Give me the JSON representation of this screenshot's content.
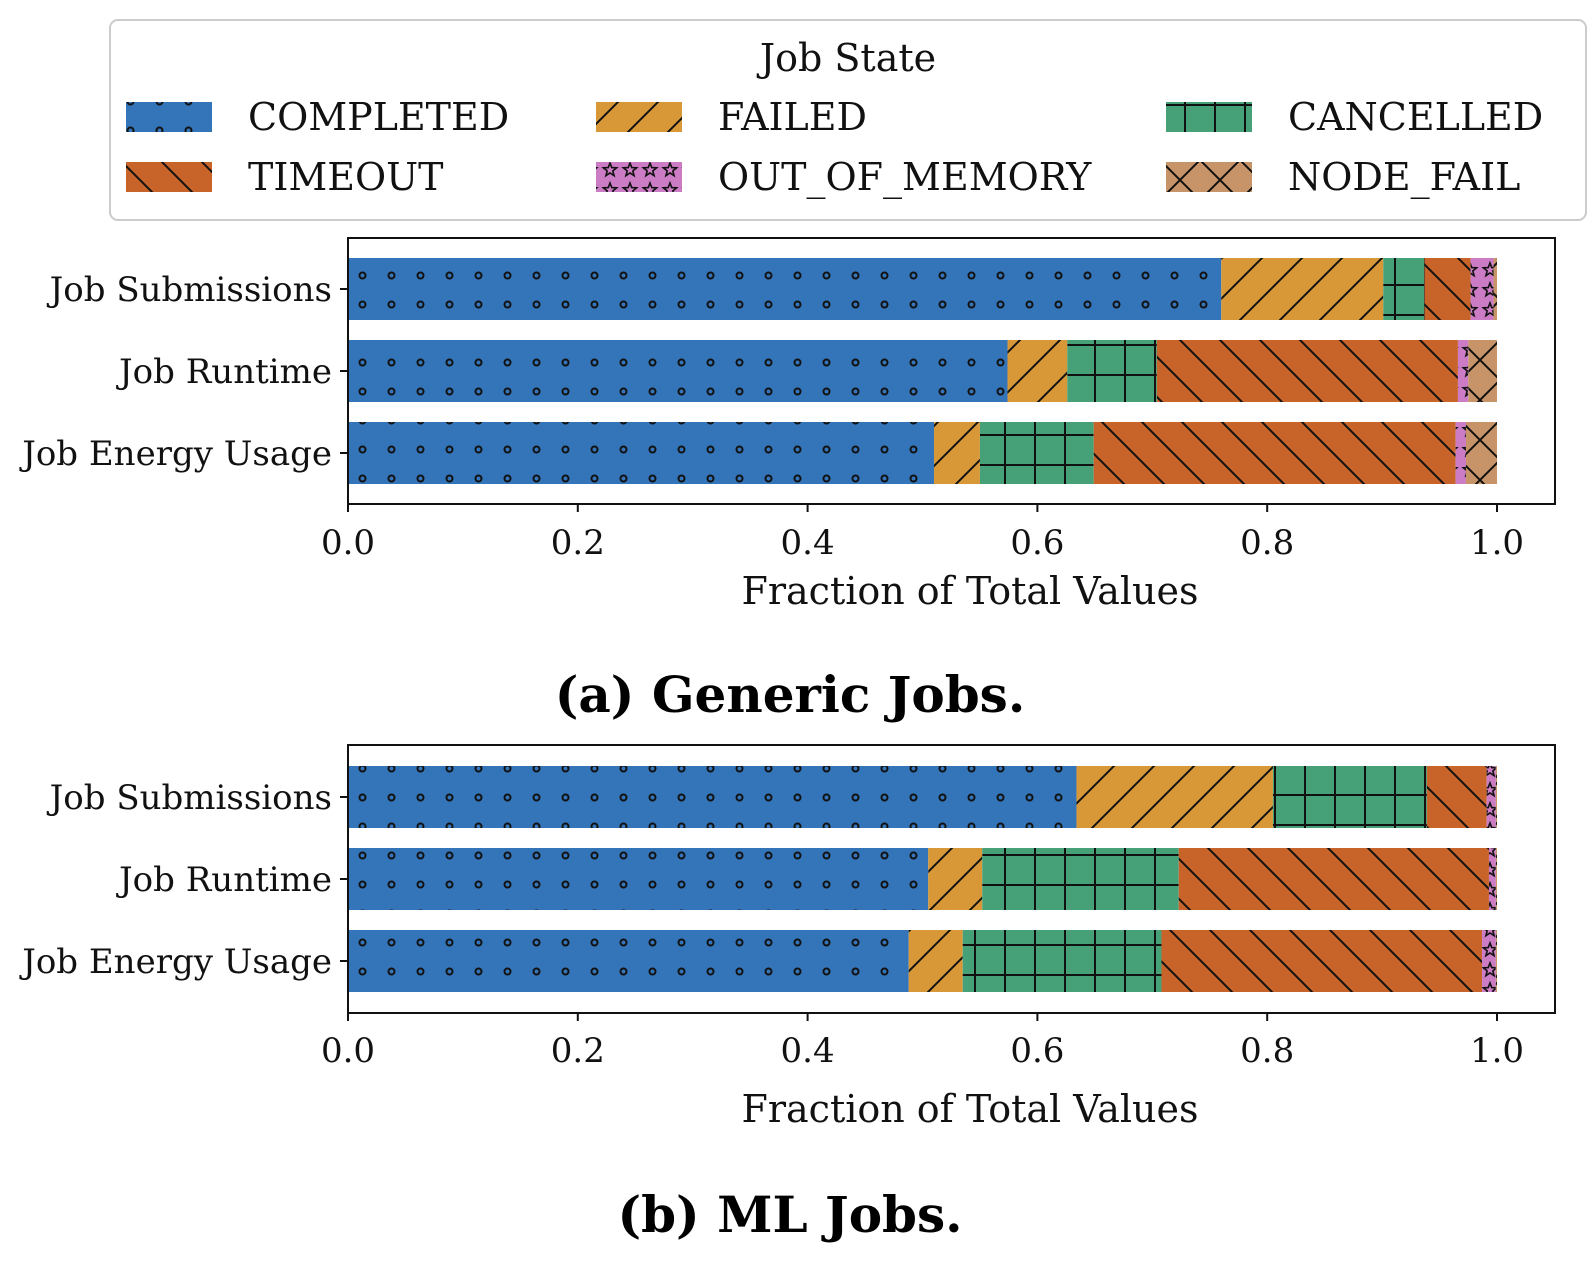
{
  "legend": {
    "title": "Job State",
    "entries": [
      {
        "label": "COMPLETED",
        "color": "#3474b8",
        "pattern": "dots"
      },
      {
        "label": "FAILED",
        "color": "#d89838",
        "pattern": "slash"
      },
      {
        "label": "CANCELLED",
        "color": "#46a078",
        "pattern": "grid"
      },
      {
        "label": "TIMEOUT",
        "color": "#c8642a",
        "pattern": "backslash"
      },
      {
        "label": "OUT_OF_MEMORY",
        "color": "#cc7cc4",
        "pattern": "stars"
      },
      {
        "label": "NODE_FAIL",
        "color": "#c69468",
        "pattern": "cross"
      }
    ]
  },
  "chart_data": [
    {
      "type": "bar",
      "orientation": "horizontal",
      "stacked": true,
      "caption": "(a) Generic Jobs.",
      "xlabel": "Fraction of Total Values",
      "xlim": [
        0.0,
        1.0
      ],
      "xticks": [
        "0.0",
        "0.2",
        "0.4",
        "0.6",
        "0.8",
        "1.0"
      ],
      "categories": [
        "Job Submissions",
        "Job Runtime",
        "Job Energy Usage"
      ],
      "series": [
        {
          "name": "COMPLETED",
          "values": [
            0.76,
            0.574,
            0.51
          ]
        },
        {
          "name": "FAILED",
          "values": [
            0.141,
            0.052,
            0.04
          ]
        },
        {
          "name": "CANCELLED",
          "values": [
            0.036,
            0.078,
            0.099
          ]
        },
        {
          "name": "TIMEOUT",
          "values": [
            0.04,
            0.262,
            0.315
          ]
        },
        {
          "name": "OUT_OF_MEMORY",
          "values": [
            0.02,
            0.009,
            0.009
          ]
        },
        {
          "name": "NODE_FAIL",
          "values": [
            0.003,
            0.025,
            0.027
          ]
        }
      ]
    },
    {
      "type": "bar",
      "orientation": "horizontal",
      "stacked": true,
      "caption": "(b) ML Jobs.",
      "xlabel": "Fraction of Total Values",
      "xlim": [
        0.0,
        1.0
      ],
      "xticks": [
        "0.0",
        "0.2",
        "0.4",
        "0.6",
        "0.8",
        "1.0"
      ],
      "categories": [
        "Job Submissions",
        "Job Runtime",
        "Job Energy Usage"
      ],
      "series": [
        {
          "name": "COMPLETED",
          "values": [
            0.634,
            0.505,
            0.488
          ]
        },
        {
          "name": "FAILED",
          "values": [
            0.171,
            0.047,
            0.047
          ]
        },
        {
          "name": "CANCELLED",
          "values": [
            0.134,
            0.171,
            0.173
          ]
        },
        {
          "name": "TIMEOUT",
          "values": [
            0.052,
            0.27,
            0.279
          ]
        },
        {
          "name": "OUT_OF_MEMORY",
          "values": [
            0.008,
            0.006,
            0.012
          ]
        },
        {
          "name": "NODE_FAIL",
          "values": [
            0.001,
            0.001,
            0.001
          ]
        }
      ]
    }
  ]
}
